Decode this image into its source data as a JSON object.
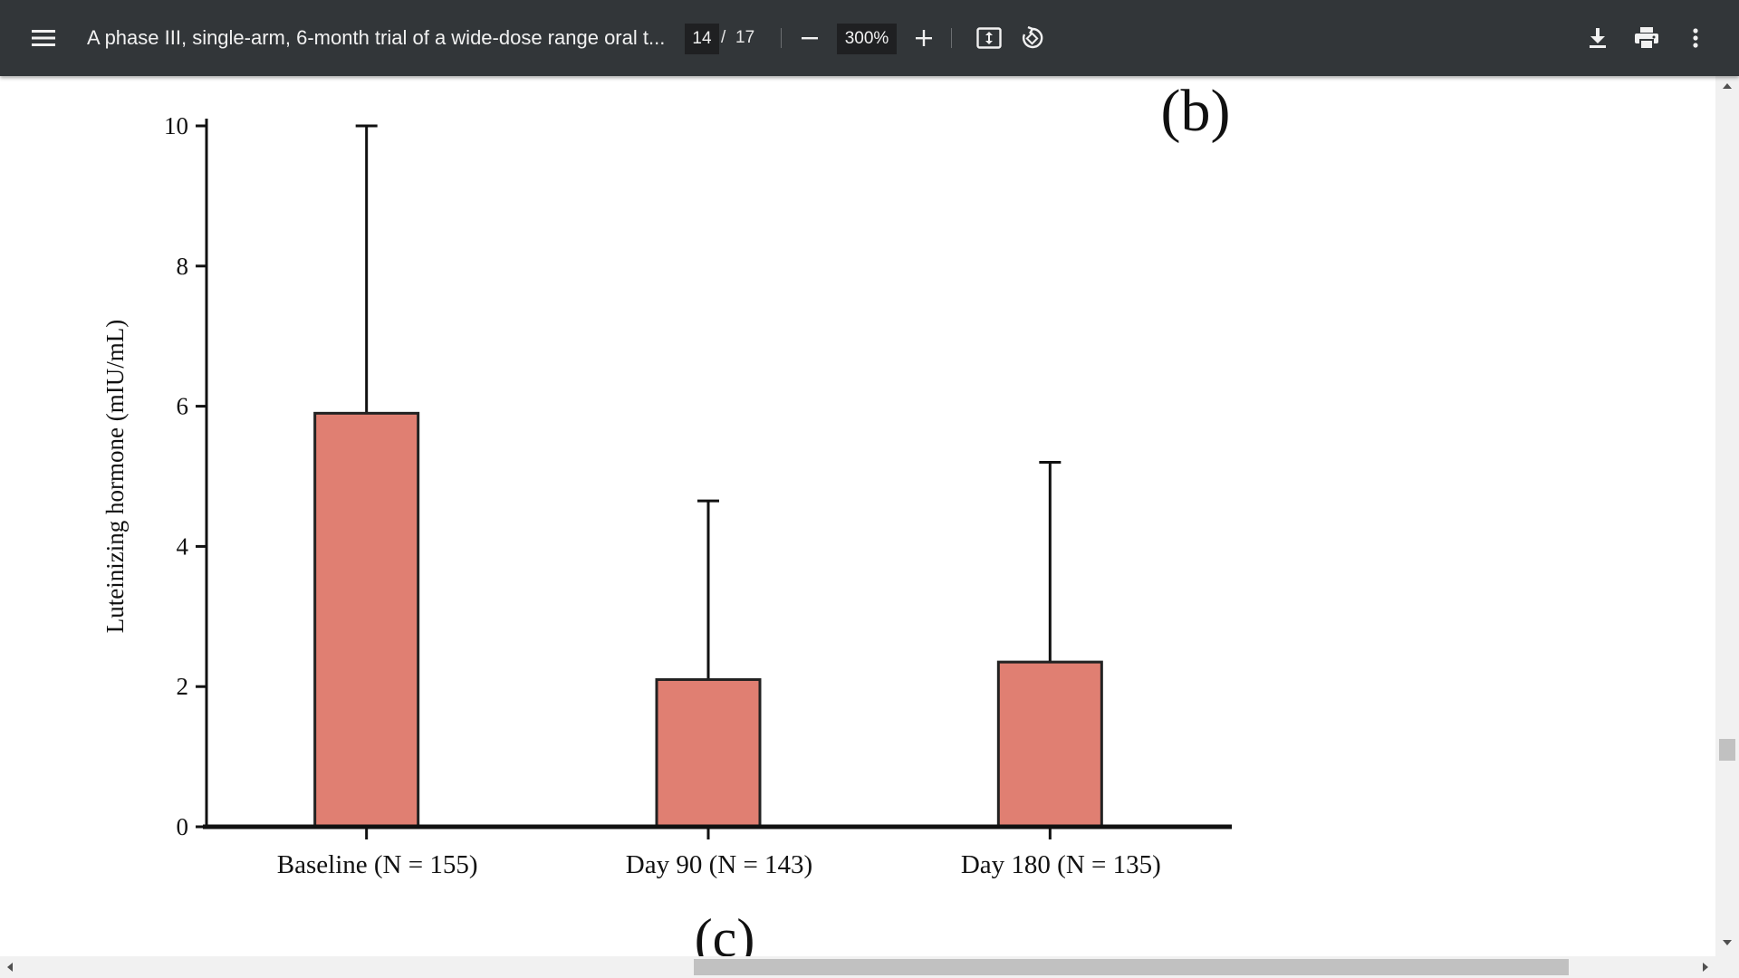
{
  "toolbar": {
    "title": "A phase III, single-arm, 6-month trial of a wide-dose range oral t...",
    "page_current": "14",
    "page_separator": "/",
    "page_total": "17",
    "zoom": "300%",
    "icons": [
      "menu-icon",
      "zoom-out-icon",
      "zoom-in-icon",
      "fit-page-icon",
      "rotate-icon",
      "download-icon",
      "print-icon",
      "more-vert-icon"
    ]
  },
  "figure": {
    "panel_label": "(b)",
    "next_panel_label": "(c)"
  },
  "colors": {
    "toolbar_bg": "#323639",
    "bar_fill": "#E07F72",
    "bar_stroke": "#222222"
  },
  "chart_data": {
    "type": "bar",
    "categories": [
      "Baseline (N = 155)",
      "Day 90 (N = 143)",
      "Day 180 (N = 135)"
    ],
    "series": [
      {
        "values": [
          5.9,
          2.1,
          2.35
        ],
        "error_upper": [
          10.0,
          4.65,
          5.2
        ]
      }
    ],
    "ylabel": "Luteinizing hormone (mIU/mL)",
    "xlabel": "",
    "ylim": [
      0,
      10
    ],
    "yticks": [
      "0",
      "2",
      "4",
      "6",
      "8",
      "10"
    ],
    "grid": false,
    "legend": "none"
  }
}
